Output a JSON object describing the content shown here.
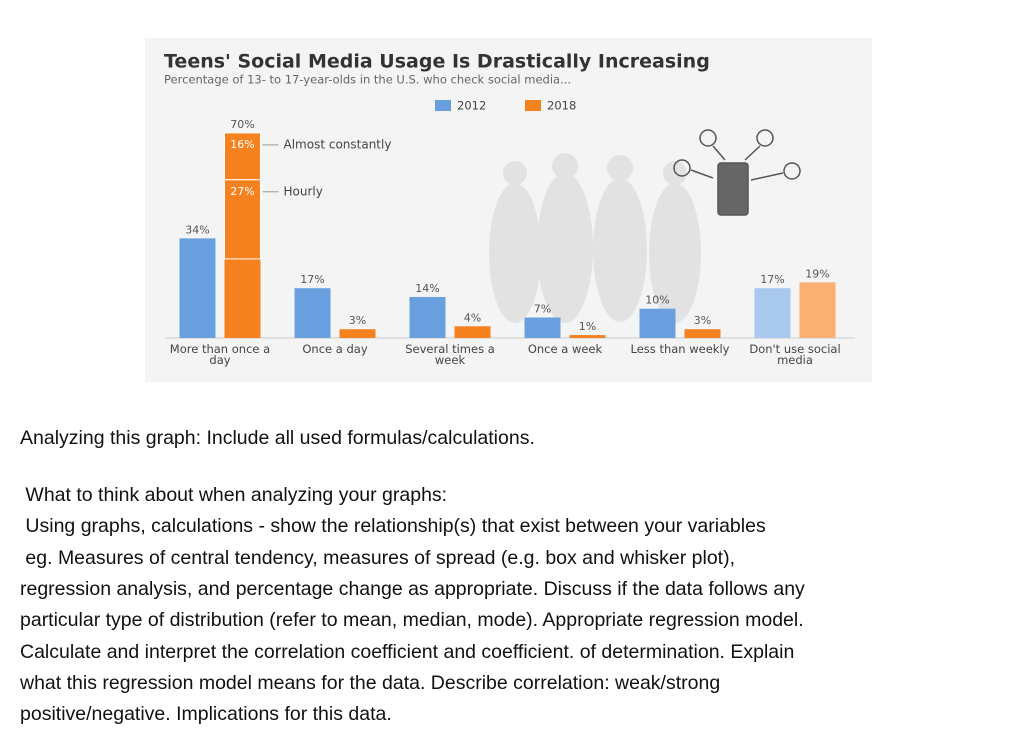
{
  "chart_data": {
    "type": "bar",
    "title": "Teens' Social Media Usage Is Drastically Increasing",
    "subtitle": "Percentage of 13- to 17-year-olds in the U.S. who check social media...",
    "categories": [
      "More than once a day",
      "Once a day",
      "Several times a week",
      "Once a week",
      "Less than weekly",
      "Don't use social media"
    ],
    "series": [
      {
        "name": "2012",
        "color": "#6a9fdf",
        "colors": [
          "#6a9fdf",
          "#6a9fdf",
          "#6a9fdf",
          "#6a9fdf",
          "#6a9fdf",
          "#a9c8ee"
        ],
        "values": [
          34,
          17,
          14,
          7,
          10,
          17
        ],
        "value_labels": [
          "34%",
          "17%",
          "14%",
          "7%",
          "10%",
          "17%"
        ]
      },
      {
        "name": "2018",
        "color": "#f5821f",
        "colors": [
          "#f5821f",
          "#f5821f",
          "#f5821f",
          "#f5821f",
          "#f5821f",
          "#f9b072"
        ],
        "values": [
          70,
          3,
          4,
          1,
          3,
          19
        ],
        "value_labels": [
          "70%",
          "3%",
          "4%",
          "1%",
          "3%",
          "19%"
        ]
      }
    ],
    "breakdown": [
      {
        "label": "Almost constantly",
        "value": 16,
        "value_label": "16%"
      },
      {
        "label": "Hourly",
        "value": 27,
        "value_label": "27%"
      }
    ]
  },
  "document": {
    "heading": "Analyzing this graph: Include all used formulas/calculations.",
    "lines": [
      " What to think about when analyzing your graphs:",
      " Using graphs, calculations - show the relationship(s) that exist between your variables",
      " eg. Measures of central tendency, measures of spread (e.g. box and whisker plot),",
      "regression analysis, and percentage change as appropriate. Discuss if the data follows any",
      "particular type of distribution (refer to mean, median, mode). Appropriate regression model.",
      "Calculate and interpret the correlation coefficient and coefficient. of determination. Explain",
      "what this regression model means for the data. Describe correlation: weak/strong",
      "positive/negative. Implications for this data."
    ]
  }
}
